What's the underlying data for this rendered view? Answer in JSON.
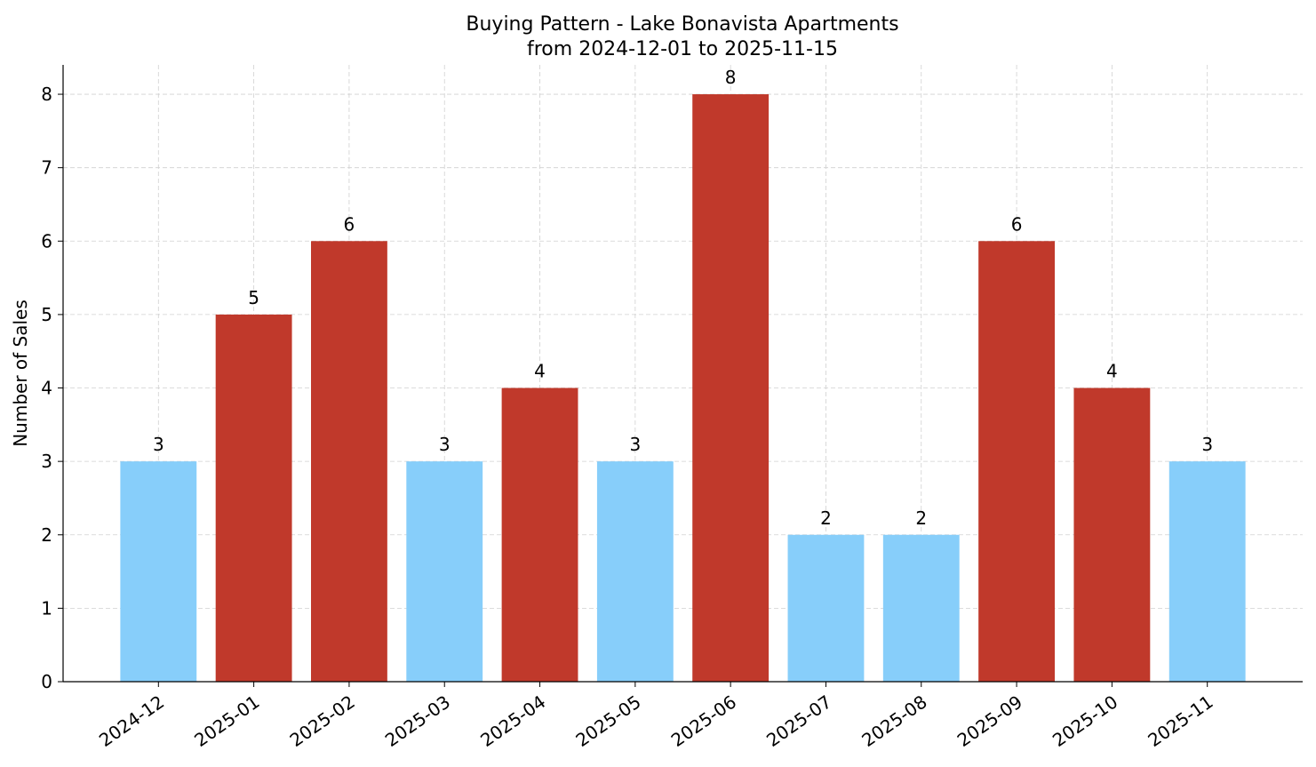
{
  "chart_data": {
    "type": "bar",
    "title": "Buying Pattern - Lake Bonavista Apartments",
    "subtitle": "from 2024-12-01 to 2025-11-15",
    "y_label": "Number of Sales",
    "categories": [
      "2024-12",
      "2025-01",
      "2025-02",
      "2025-03",
      "2025-04",
      "2025-05",
      "2025-06",
      "2025-07",
      "2025-08",
      "2025-09",
      "2025-10",
      "2025-11"
    ],
    "values": [
      3,
      5,
      6,
      3,
      4,
      3,
      8,
      2,
      2,
      6,
      4,
      3
    ],
    "colors": [
      "#87cefa",
      "#c0392b",
      "#c0392b",
      "#87cefa",
      "#c0392b",
      "#87cefa",
      "#c0392b",
      "#87cefa",
      "#87cefa",
      "#c0392b",
      "#c0392b",
      "#87cefa"
    ],
    "ylim": [
      0,
      8.4
    ],
    "yticks": [
      0,
      1,
      2,
      3,
      4,
      5,
      6,
      7,
      8
    ],
    "grid": true
  }
}
